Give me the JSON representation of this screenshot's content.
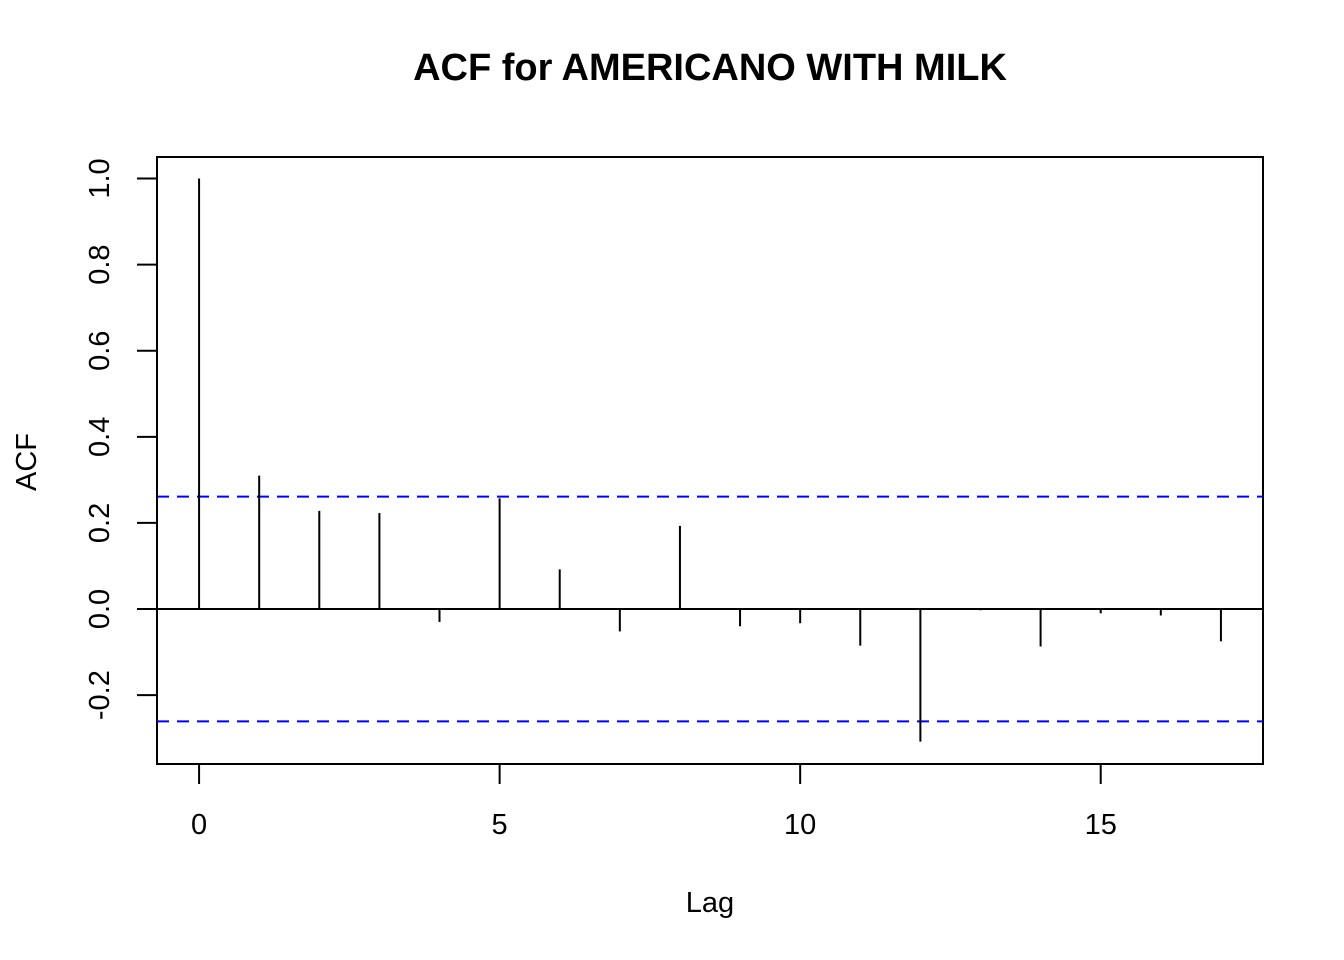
{
  "chart_data": {
    "type": "bar",
    "title": "ACF for AMERICANO WITH MILK",
    "xlabel": "Lag",
    "ylabel": "ACF",
    "x": [
      0,
      1,
      2,
      3,
      4,
      5,
      6,
      7,
      8,
      9,
      10,
      11,
      12,
      13,
      14,
      15,
      16,
      17
    ],
    "values": [
      1.0,
      0.31,
      0.228,
      0.223,
      -0.03,
      0.257,
      0.092,
      -0.052,
      0.193,
      -0.04,
      -0.033,
      -0.085,
      -0.308,
      -0.003,
      -0.087,
      -0.01,
      -0.015,
      -0.075
    ],
    "xlim": [
      -0.7,
      17.7
    ],
    "ylim": [
      -0.36,
      1.05
    ],
    "x_ticks": [
      0,
      5,
      10,
      15
    ],
    "y_ticks": [
      -0.2,
      0.0,
      0.2,
      0.4,
      0.6,
      0.8,
      1.0
    ],
    "y_tick_labels": [
      "-0.2",
      "0.0",
      "0.2",
      "0.4",
      "0.6",
      "0.8",
      "1.0"
    ],
    "confidence_bounds": [
      0.261,
      -0.261
    ],
    "confidence_color": "#0000FF",
    "bar_color": "#000000",
    "grid": false,
    "legend": "none"
  }
}
